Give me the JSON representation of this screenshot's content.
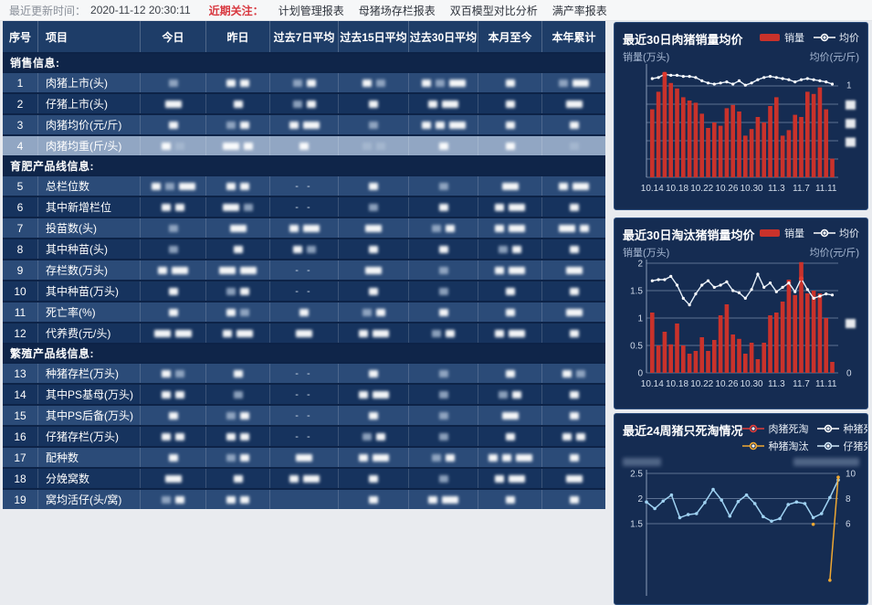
{
  "topbar": {
    "updated_label": "最近更新时间：",
    "updated_value": "2020-11-12 20:30:11",
    "focus_label": "近期关注：",
    "links": [
      "计划管理报表",
      "母猪场存栏报表",
      "双百模型对比分析",
      "满产率报表"
    ]
  },
  "table": {
    "headers": [
      "序号",
      "项目",
      "今日",
      "昨日",
      "过去7日平均",
      "过去15日平均",
      "过去30日平均",
      "本月至今",
      "本年累计"
    ],
    "groups": [
      {
        "title": "销售信息:",
        "rows": [
          {
            "no": "1",
            "label": "肉猪上市(头)",
            "cells": [
              "c",
              "aa",
              "ca",
              "ac",
              "acb",
              "a",
              "cb"
            ]
          },
          {
            "no": "2",
            "label": "仔猪上市(头)",
            "cells": [
              "b",
              "a",
              "ca",
              "a",
              "ab",
              "a",
              "b"
            ]
          },
          {
            "no": "3",
            "label": "肉猪均价(元/斤)",
            "cells": [
              "a",
              "ca",
              "ab",
              "c",
              "aab",
              "a",
              "a"
            ]
          },
          {
            "no": "4",
            "label": "肉猪均重(斤/头)",
            "selected": true,
            "cells": [
              "ac",
              "ba",
              "a",
              "cc",
              "a",
              "a",
              "c"
            ]
          }
        ]
      },
      {
        "title": "育肥产品线信息:",
        "rows": [
          {
            "no": "5",
            "label": "总栏位数",
            "cells": [
              "acb",
              "aa",
              "-",
              "a",
              "c",
              "b",
              "ab"
            ]
          },
          {
            "no": "6",
            "label": "其中新增栏位",
            "cells": [
              "aa",
              "bc",
              "-",
              "c",
              "a",
              "ab",
              "a"
            ]
          },
          {
            "no": "7",
            "label": "投苗数(头)",
            "cells": [
              "c",
              "b",
              "ab",
              "b",
              "ca",
              "ab",
              "ba"
            ]
          },
          {
            "no": "8",
            "label": "其中种苗(头)",
            "cells": [
              "c",
              "a",
              "ac",
              "a",
              "a",
              "ca",
              "a"
            ]
          },
          {
            "no": "9",
            "label": "存栏数(万头)",
            "cells": [
              "ab",
              "bb",
              "-",
              "b",
              "c",
              "ab",
              "b"
            ]
          },
          {
            "no": "10",
            "label": "其中种苗(万头)",
            "cells": [
              "a",
              "ca",
              "-",
              "a",
              "c",
              "a",
              "a"
            ]
          },
          {
            "no": "11",
            "label": "死亡率(%)",
            "cells": [
              "a",
              "ac",
              "a",
              "ca",
              "a",
              "a",
              "b"
            ]
          },
          {
            "no": "12",
            "label": "代养费(元/头)",
            "cells": [
              "bb",
              "ab",
              "b",
              "ab",
              "ca",
              "ab",
              "a"
            ]
          }
        ]
      },
      {
        "title": "繁殖产品线信息:",
        "rows": [
          {
            "no": "13",
            "label": "种猪存栏(万头)",
            "cells": [
              "ac",
              "a",
              "-",
              "a",
              "c",
              "a",
              "ac"
            ]
          },
          {
            "no": "14",
            "label": "其中PS基母(万头)",
            "cells": [
              "aa",
              "c",
              "-",
              "ab",
              "c",
              "ca",
              "a"
            ]
          },
          {
            "no": "15",
            "label": "其中PS后备(万头)",
            "cells": [
              "a",
              "ca",
              "-",
              "a",
              "c",
              "b",
              "a"
            ]
          },
          {
            "no": "16",
            "label": "仔猪存栏(万头)",
            "cells": [
              "aa",
              "aa",
              "-",
              "ca",
              "c",
              "a",
              "aa"
            ]
          },
          {
            "no": "17",
            "label": "配种数",
            "cells": [
              "a",
              "ca",
              "b",
              "ab",
              "ca",
              "aab",
              "a"
            ]
          },
          {
            "no": "18",
            "label": "分娩窝数",
            "cells": [
              "b",
              "a",
              "ab",
              "a",
              "c",
              "ab",
              "b"
            ]
          },
          {
            "no": "19",
            "label": "窝均活仔(头/窝)",
            "cells": [
              "ca",
              "aa",
              "",
              "a",
              "ab",
              "a",
              "a"
            ]
          }
        ]
      }
    ]
  },
  "chart_data": [
    {
      "type": "bar+line",
      "title": "最近30日肉猪销量均价",
      "legend": [
        {
          "label": "销量",
          "marker": "bar",
          "color": "#c9322b"
        },
        {
          "label": "均价",
          "marker": "line",
          "color": "#ffffff"
        }
      ],
      "ylabel_left": "销量(万头)",
      "ylabel_right": "均价(元/斤)",
      "x_tick_labels": [
        "10.14",
        "10.18",
        "10.22",
        "10.26",
        "10.30",
        "11.3",
        "11.7",
        "11.11"
      ],
      "x_tick_every": 4,
      "left_axis_values": "redacted",
      "bars_pct": [
        62,
        78,
        96,
        86,
        81,
        73,
        70,
        68,
        58,
        45,
        50,
        47,
        63,
        66,
        60,
        38,
        44,
        55,
        50,
        65,
        73,
        38,
        43,
        57,
        55,
        78,
        76,
        82,
        62,
        17
      ],
      "line_pct": [
        90,
        91,
        94,
        93,
        93,
        92,
        92,
        91,
        88,
        86,
        85,
        86,
        87,
        85,
        88,
        84,
        86,
        89,
        91,
        92,
        91,
        90,
        89,
        87,
        89,
        90,
        89,
        88,
        87,
        85
      ],
      "line_peak_index": 2,
      "gridlines": 6,
      "right_ticks": [
        {
          "f": 0.16,
          "text": "1"
        },
        {
          "f": 0.34,
          "redacted": true
        },
        {
          "f": 0.51,
          "redacted": true
        },
        {
          "f": 0.68,
          "redacted": true
        }
      ]
    },
    {
      "type": "bar+line",
      "title": "最近30日淘汰猪销量均价",
      "legend": [
        {
          "label": "销量",
          "marker": "bar",
          "color": "#c9322b"
        },
        {
          "label": "均价",
          "marker": "line",
          "color": "#ffffff"
        }
      ],
      "ylabel_left": "销量(万头)",
      "ylabel_right": "均价(元/斤)",
      "x_tick_labels": [
        "10.14",
        "10.18",
        "10.22",
        "10.26",
        "10.30",
        "11.3",
        "11.7",
        "11.11"
      ],
      "x_tick_every": 4,
      "ylim_left": [
        0,
        2
      ],
      "left_ticks": [
        "2",
        "1.5",
        "1",
        "0.5",
        "0"
      ],
      "bars": [
        1.1,
        0.5,
        0.75,
        0.52,
        0.9,
        0.5,
        0.35,
        0.4,
        0.65,
        0.4,
        0.6,
        1.05,
        1.25,
        0.7,
        0.62,
        0.35,
        0.55,
        0.25,
        0.55,
        1.05,
        1.1,
        1.3,
        1.7,
        1.42,
        2.02,
        1.45,
        1.5,
        1.45,
        1.0,
        0.2
      ],
      "line_pct": [
        84,
        85,
        85,
        88,
        80,
        68,
        62,
        72,
        80,
        84,
        78,
        80,
        83,
        75,
        73,
        68,
        76,
        90,
        78,
        82,
        74,
        78,
        82,
        74,
        86,
        76,
        68,
        70,
        72,
        71
      ],
      "line_peak_index": 24,
      "right_ticks": [
        {
          "f": 0.55,
          "redacted": true
        },
        {
          "f": 1,
          "text": "0"
        }
      ]
    },
    {
      "type": "line",
      "title": "最近24周猪只死淘情况",
      "legend": [
        {
          "label": "肉猪死淘",
          "color": "#e23c39"
        },
        {
          "label": "种猪死亡",
          "color": "#ffffff"
        },
        {
          "label": "种猪淘汰",
          "color": "#f0a832"
        },
        {
          "label": "仔猪死亡",
          "color": "#cfe6f8"
        }
      ],
      "ylabel_left": "redacted",
      "ylabel_right": "redacted",
      "left_ticks": [
        {
          "v": 2.5,
          "text": "2.5"
        },
        {
          "v": 2,
          "text": "2"
        },
        {
          "v": 1.5,
          "text": "1.5"
        }
      ],
      "right_ticks": [
        {
          "v": 10,
          "text": "10"
        },
        {
          "v": 8,
          "text": "8"
        },
        {
          "v": 6,
          "text": "6"
        }
      ],
      "series": [
        {
          "name": "仔猪死亡",
          "axis": "left",
          "color": "#9fd2f2",
          "values": [
            1.93,
            1.8,
            1.95,
            2.07,
            1.62,
            1.68,
            1.7,
            1.92,
            2.18,
            1.97,
            1.65,
            1.94,
            2.07,
            1.9,
            1.64,
            1.55,
            1.6,
            1.88,
            1.93,
            1.9,
            1.62,
            1.7,
            2.02,
            2.37
          ]
        },
        {
          "name": "种猪淘汰",
          "axis": "right",
          "color": "#f0a832",
          "values": [
            null,
            null,
            null,
            null,
            null,
            null,
            null,
            null,
            null,
            null,
            null,
            null,
            null,
            null,
            null,
            null,
            null,
            null,
            null,
            null,
            5.95,
            null,
            1.5,
            9.7
          ]
        }
      ]
    }
  ],
  "colors": {
    "bar_red": "#c9322b",
    "price_line": "#e6f0fa",
    "peak_dot": "#e03b30",
    "accent_red": "#d8373f",
    "row_light": "#2b4b78",
    "row_dark": "#16335e",
    "row_selected": "#91a6c3"
  }
}
